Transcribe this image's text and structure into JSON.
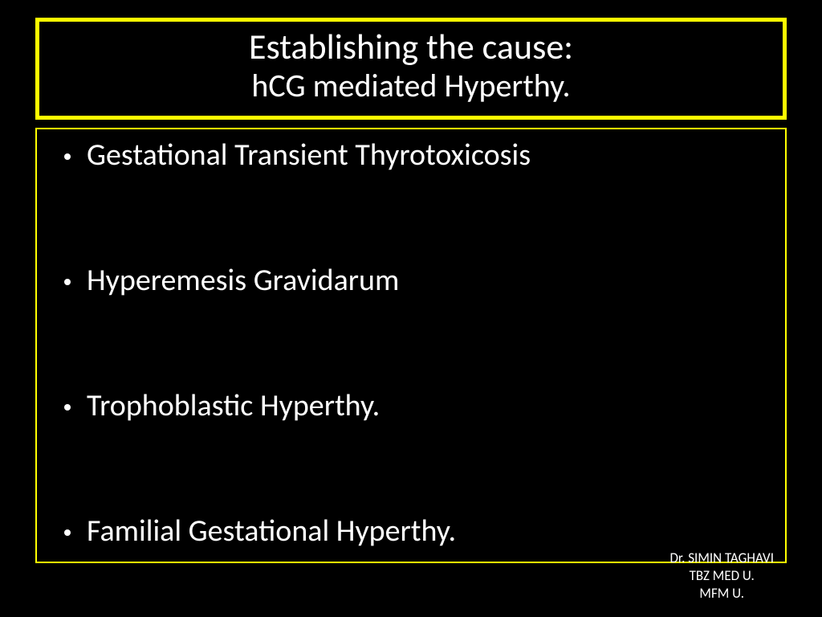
{
  "title": {
    "line1": "Establishing the cause:",
    "line2": "hCG mediated Hyperthy."
  },
  "bullets": {
    "item1": "Gestational Transient Thyrotoxicosis",
    "item2": "Hyperemesis Gravidarum",
    "item3": "Trophoblastic Hyperthy.",
    "item4": "Familial Gestational Hyperthy."
  },
  "footer": {
    "line1": "Dr. SIMIN  TAGHAVI",
    "line2": "TBZ MED U.",
    "line3": "MFM U."
  },
  "colors": {
    "background": "#000000",
    "border": "#ffff00",
    "text": "#ffffff"
  }
}
